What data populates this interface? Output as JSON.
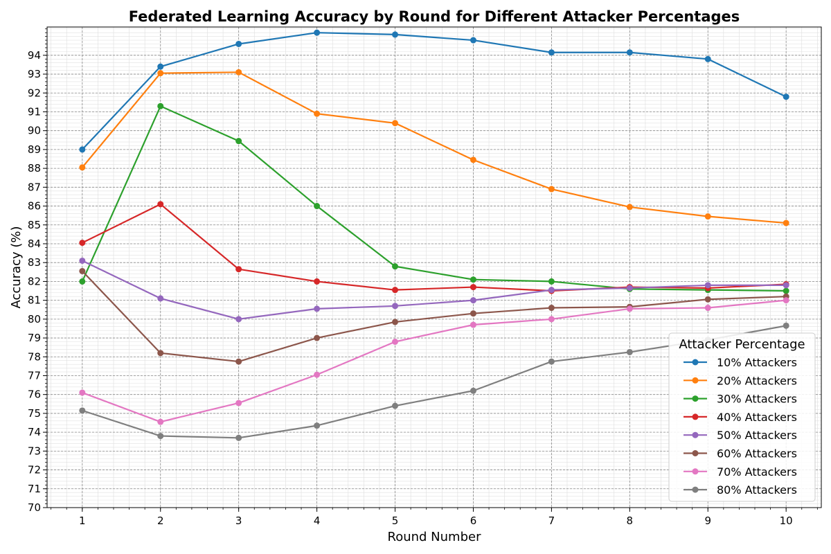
{
  "chart_data": {
    "type": "line",
    "title": "Federated Learning Accuracy by Round for Different Attacker Percentages",
    "xlabel": "Round Number",
    "ylabel": "Accuracy (%)",
    "x": [
      1,
      2,
      3,
      4,
      5,
      6,
      7,
      8,
      9,
      10
    ],
    "xlim": [
      0.55,
      10.45
    ],
    "ylim": [
      70,
      95.5
    ],
    "x_ticks": [
      1,
      2,
      3,
      4,
      5,
      6,
      7,
      8,
      9,
      10
    ],
    "y_ticks": [
      70,
      71,
      72,
      73,
      74,
      75,
      76,
      77,
      78,
      79,
      80,
      81,
      82,
      83,
      84,
      85,
      86,
      87,
      88,
      89,
      90,
      91,
      92,
      93,
      94
    ],
    "grid": true,
    "legend": {
      "title": "Attacker Percentage",
      "position": "bottom-right"
    },
    "series": [
      {
        "name": "10% Attackers",
        "color": "#1f77b4",
        "values": [
          89.0,
          93.4,
          94.6,
          95.2,
          95.1,
          94.8,
          94.15,
          94.15,
          93.8,
          91.8
        ]
      },
      {
        "name": "20% Attackers",
        "color": "#ff7f0e",
        "values": [
          88.05,
          93.05,
          93.1,
          90.9,
          90.4,
          88.45,
          86.9,
          85.95,
          85.45,
          85.1
        ]
      },
      {
        "name": "30% Attackers",
        "color": "#2ca02c",
        "values": [
          82.0,
          91.3,
          89.45,
          86.0,
          82.8,
          82.1,
          82.0,
          81.6,
          81.55,
          81.5
        ]
      },
      {
        "name": "40% Attackers",
        "color": "#d62728",
        "values": [
          84.05,
          86.1,
          82.65,
          82.0,
          81.55,
          81.7,
          81.5,
          81.7,
          81.65,
          81.85
        ]
      },
      {
        "name": "50% Attackers",
        "color": "#9467bd",
        "values": [
          83.1,
          81.1,
          80.0,
          80.55,
          80.7,
          81.0,
          81.55,
          81.65,
          81.8,
          81.8
        ]
      },
      {
        "name": "60% Attackers",
        "color": "#8c564b",
        "values": [
          82.55,
          78.2,
          77.75,
          79.0,
          79.85,
          80.3,
          80.6,
          80.65,
          81.05,
          81.2
        ]
      },
      {
        "name": "70% Attackers",
        "color": "#e377c2",
        "values": [
          76.1,
          74.55,
          75.55,
          77.05,
          78.8,
          79.7,
          80.0,
          80.55,
          80.6,
          81.0
        ]
      },
      {
        "name": "80% Attackers",
        "color": "#7f7f7f",
        "values": [
          75.15,
          73.8,
          73.7,
          74.35,
          75.4,
          76.2,
          77.75,
          78.25,
          78.9,
          79.65
        ]
      }
    ]
  }
}
